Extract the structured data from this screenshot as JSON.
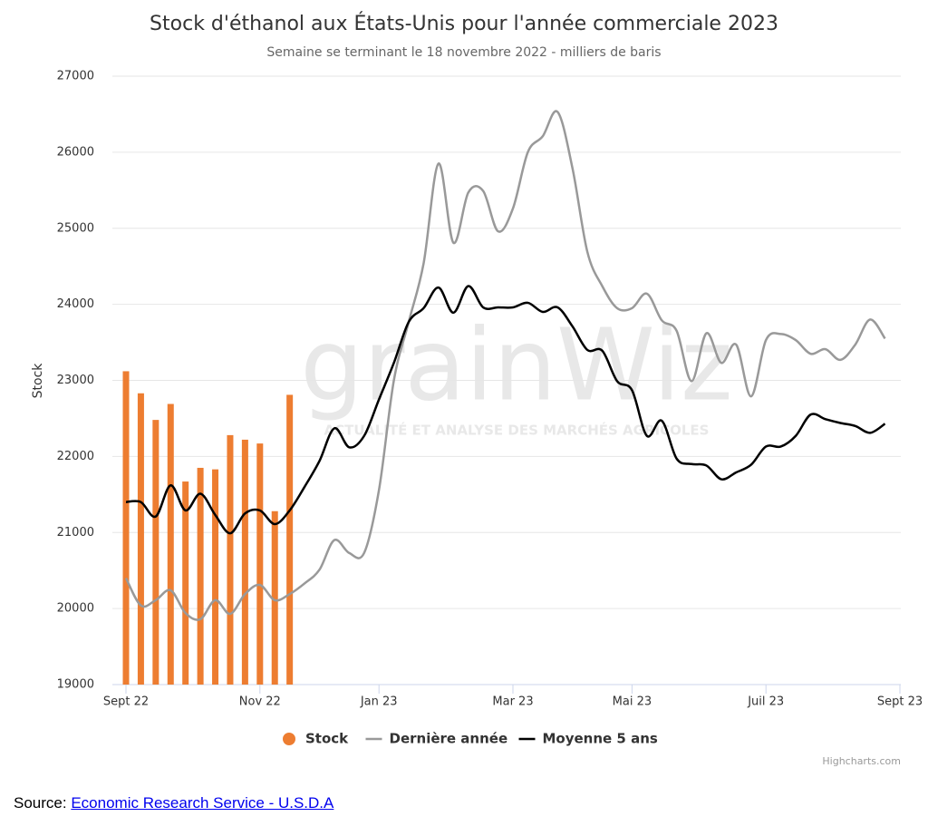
{
  "chart_data": {
    "type": "line",
    "title": "Stock d'éthanol aux États-Unis pour l'année commerciale 2023",
    "subtitle": "Semaine se terminant le 18 novembre 2022 - milliers de baris",
    "y_axis_label": "Stock",
    "watermark": "grainWiz",
    "watermark_tagline": "ACTUALITÉ ET ANALYSE DES MARCHÉS AGRICOLES",
    "credits": "Highcharts.com",
    "source_label": "Source:",
    "source_link": "Economic Research Service - U.S.D.A",
    "categories": [
      "Sept 22",
      null,
      null,
      null,
      null,
      null,
      null,
      null,
      null,
      "Nov 22",
      null,
      null,
      null,
      null,
      null,
      null,
      null,
      "Jan 23",
      null,
      null,
      null,
      null,
      null,
      null,
      null,
      null,
      "Mar 23",
      null,
      null,
      null,
      null,
      null,
      null,
      null,
      "Mai 23",
      null,
      null,
      null,
      null,
      null,
      null,
      null,
      null,
      "Juil 23",
      null,
      null,
      null,
      null,
      null,
      null,
      null,
      null,
      "Sept 23"
    ],
    "ylim": [
      19000,
      27000
    ],
    "yticks": [
      19000,
      20000,
      21000,
      22000,
      23000,
      24000,
      25000,
      26000,
      27000
    ],
    "grid": true,
    "legend": "bottom",
    "series": [
      {
        "name": "Stock",
        "type": "bar",
        "color": "#ed7d31",
        "values": [
          23120,
          22830,
          22480,
          22690,
          21670,
          21850,
          21830,
          22280,
          22220,
          22170,
          21280,
          22810,
          null,
          null,
          null,
          null,
          null,
          null,
          null,
          null,
          null,
          null,
          null,
          null,
          null,
          null,
          null,
          null,
          null,
          null,
          null,
          null,
          null,
          null,
          null,
          null,
          null,
          null,
          null,
          null,
          null,
          null,
          null,
          null,
          null,
          null,
          null,
          null,
          null,
          null,
          null,
          null,
          null
        ]
      },
      {
        "name": "Dernière année",
        "type": "line",
        "color": "#999999",
        "values": [
          20400,
          20040,
          20110,
          20240,
          19940,
          19860,
          20110,
          19930,
          20190,
          20310,
          20110,
          20190,
          20330,
          20510,
          20900,
          20730,
          20730,
          21560,
          23000,
          23770,
          24540,
          25850,
          24810,
          25470,
          25490,
          24960,
          25260,
          26000,
          26210,
          26530,
          25790,
          24690,
          24240,
          23950,
          23950,
          24140,
          23790,
          23650,
          22990,
          23620,
          23230,
          23470,
          22790,
          23530,
          23610,
          23530,
          23350,
          23410,
          23270,
          23470,
          23800,
          23550,
          null
        ]
      },
      {
        "name": "Moyenne 5 ans",
        "type": "line",
        "color": "#000000",
        "values": [
          21400,
          21400,
          21210,
          21620,
          21290,
          21510,
          21230,
          20990,
          21250,
          21290,
          21110,
          21290,
          21600,
          21940,
          22370,
          22120,
          22270,
          22750,
          23230,
          23770,
          23950,
          24220,
          23890,
          24240,
          23960,
          23960,
          23960,
          24020,
          23900,
          23960,
          23710,
          23400,
          23390,
          22990,
          22870,
          22270,
          22470,
          21970,
          21900,
          21880,
          21700,
          21790,
          21890,
          22130,
          22130,
          22270,
          22550,
          22490,
          22440,
          22400,
          22310,
          22430,
          null
        ]
      }
    ]
  }
}
